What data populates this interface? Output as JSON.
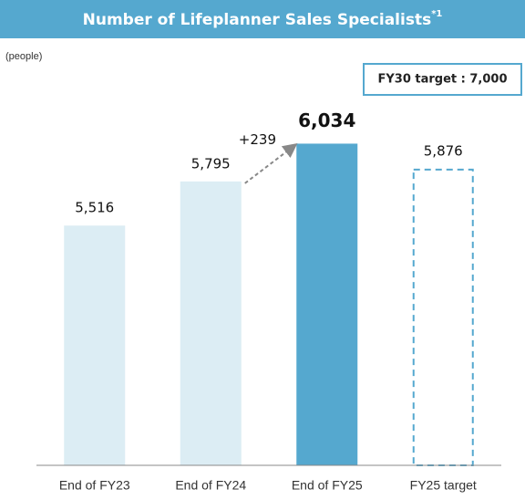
{
  "chart_data": {
    "type": "bar",
    "title": "Number of Lifeplanner Sales Specialists",
    "title_note": "*1",
    "unit_label": "(people)",
    "target_box": "FY30 target : 7,000",
    "annotation": "+239",
    "categories": [
      "End of FY23",
      "End of FY24",
      "End of FY25",
      "FY25 target"
    ],
    "values": [
      5516,
      5795,
      6034,
      5876
    ],
    "value_labels": [
      "5,516",
      "5,795",
      "6,034",
      "5,876"
    ],
    "colors": [
      "#dcedf4",
      "#dcedf4",
      "#55a8cf",
      "#55a8cf"
    ],
    "bar_styles": [
      "solid",
      "solid",
      "solid",
      "dashed"
    ],
    "highlight": 2,
    "ylim": [
      4000,
      7000
    ]
  }
}
